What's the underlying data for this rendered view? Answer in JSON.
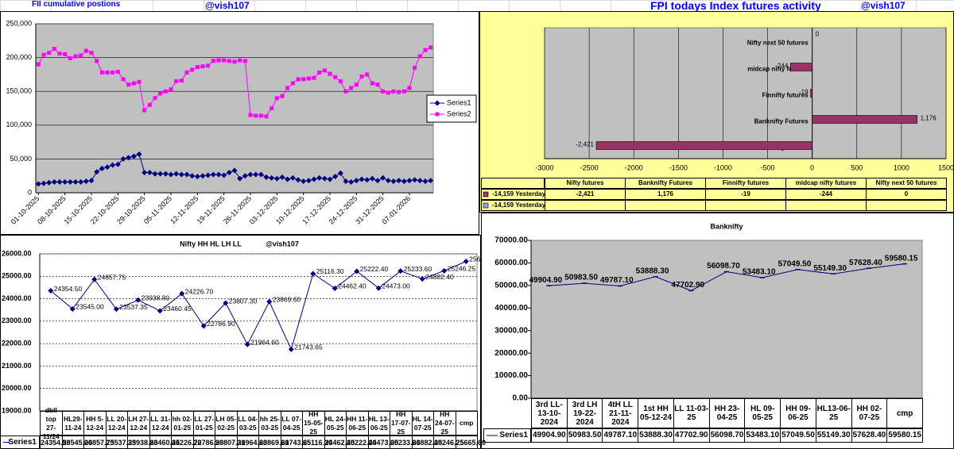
{
  "sheet_labels": {
    "fii_title": "FII cumulative postions",
    "handle_left": "@vish107",
    "fpi_title": "FPI todays Index futures activity",
    "handle_right": "@vish107"
  },
  "chart_data": [
    {
      "type": "line",
      "categories": [
        "01-10-2025",
        null,
        null,
        null,
        null,
        "08-10-2025",
        null,
        null,
        null,
        null,
        "15-10-2025",
        null,
        null,
        null,
        null,
        "22-10-2025",
        null,
        null,
        null,
        null,
        "29-10-2025",
        null,
        null,
        null,
        null,
        "05-11-2025",
        null,
        null,
        null,
        null,
        "12-11-2025",
        null,
        null,
        null,
        null,
        "19-11-2025",
        null,
        null,
        null,
        null,
        "26-11-2025",
        null,
        null,
        null,
        null,
        "03-12-2025",
        null,
        null,
        null,
        null,
        "10-12-2025",
        null,
        null,
        null,
        null,
        "17-12-2025",
        null,
        null,
        null,
        null,
        "24-12-2025",
        null,
        null,
        null,
        null,
        "31-12-2025",
        null,
        null,
        null,
        null,
        "07-01-2026",
        null,
        null,
        null,
        null
      ],
      "series": [
        {
          "name": "Series1",
          "color": "#000080",
          "marker": "diamond",
          "values": [
            13000,
            14000,
            15000,
            16000,
            16000,
            16000,
            16000,
            16000,
            16000,
            17000,
            18000,
            31000,
            36000,
            38000,
            41000,
            42000,
            50000,
            52000,
            54000,
            57000,
            30000,
            30000,
            28000,
            28000,
            28000,
            27000,
            28000,
            27000,
            27000,
            25000,
            24000,
            25000,
            26000,
            27000,
            27000,
            26000,
            30000,
            33000,
            21000,
            25000,
            27000,
            27000,
            27000,
            23000,
            22000,
            21000,
            23000,
            20000,
            22000,
            19000,
            17000,
            18000,
            20000,
            22000,
            21000,
            20000,
            24000,
            29000,
            17000,
            16000,
            18000,
            20000,
            19000,
            21000,
            18000,
            22000,
            18000,
            17000,
            18000,
            17000,
            18000,
            19000,
            18000,
            17000,
            18000
          ]
        },
        {
          "name": "Series2",
          "color": "#ff00ff",
          "marker": "square",
          "values": [
            190000,
            204000,
            207000,
            213000,
            206000,
            205000,
            199000,
            202000,
            203000,
            210000,
            207000,
            195000,
            178000,
            178000,
            178000,
            179000,
            168000,
            160000,
            162000,
            164000,
            122000,
            130000,
            140000,
            147000,
            150000,
            153000,
            165000,
            166000,
            178000,
            182000,
            186000,
            187000,
            188000,
            195000,
            196000,
            196000,
            195000,
            194000,
            196000,
            195000,
            115000,
            114000,
            114000,
            113000,
            125000,
            140000,
            143000,
            155000,
            162000,
            168000,
            168000,
            169000,
            170000,
            178000,
            181000,
            176000,
            171000,
            165000,
            150000,
            155000,
            160000,
            172000,
            175000,
            162000,
            160000,
            150000,
            148000,
            150000,
            149000,
            150000,
            155000,
            185000,
            202000,
            211000,
            215000
          ]
        }
      ],
      "ylim": [
        0,
        250000
      ],
      "yticks": [
        0,
        {
          "value": 50000,
          "label": "50,000"
        },
        {
          "value": 100000,
          "label": "100,000"
        },
        {
          "value": 150000,
          "label": "150,000"
        },
        {
          "value": 200000,
          "label": "200,000"
        },
        {
          "value": 250000,
          "label": "250,000"
        }
      ],
      "grid": true,
      "legend": "right"
    },
    {
      "type": "bar",
      "orientation": "horizontal",
      "categories": [
        "Nifty futures",
        "Banknifty Futures",
        "Finnifty futures",
        "midcap nifty futures",
        "Nifty next 50 futures"
      ],
      "series": [
        {
          "name": "-14,159 Yesterday",
          "color": "#993366",
          "values": [
            -2421,
            1176,
            -19,
            -244,
            0
          ],
          "value_labels": [
            "-2,421",
            "1,176",
            "-19",
            "-244",
            "0"
          ]
        },
        {
          "name": "-14,159 Yesterday",
          "color": "#9999ff",
          "values": [
            null,
            null,
            null,
            null,
            null
          ]
        }
      ],
      "xlim": [
        -3000,
        1500
      ],
      "xticks": [
        -3000,
        -2500,
        -2000,
        -1500,
        -1000,
        -500,
        0,
        500,
        1000,
        1500
      ],
      "grid": true,
      "data_table": true
    },
    {
      "type": "line",
      "title": "Nifty HH HL LH LL",
      "subtitle": "@vish107",
      "categories": [
        "dbll top 27-11/24",
        "HL29-11-24",
        "HH 5-12-24",
        "LL 20-12-24",
        "LH 27-12-24",
        "LL 31-12-24",
        "hh 02-01-25",
        "LL 27-01-25",
        "LH 05-02-25",
        "LL 04-03-25",
        "hh 25-03-25",
        "LL 07-04-25",
        "HH 15-05-25",
        "HL 24-05-25",
        "HH 11-06-25",
        "HL 13-06-25",
        "HH 17-07-25",
        "HL 14-07-25",
        "HH 24-07-25",
        "cmp"
      ],
      "series": [
        {
          "name": "Series1",
          "color": "#000080",
          "marker": "diamond",
          "values": [
            24354.5,
            23545,
            24857.75,
            23537.35,
            23938.8,
            23460.45,
            24226.7,
            22786.9,
            23807.3,
            21964.6,
            23869.6,
            21743.65,
            25116.3,
            24462.4,
            25222.4,
            24473,
            25233.6,
            24882.4,
            25246.25,
            25665.6
          ],
          "value_labels": [
            "24354.50",
            "23545.00",
            "24857.75",
            "23537.35",
            "23938.80",
            "23460.45",
            "24226.70",
            "22786.90",
            "23807.30",
            "21964.60",
            "23869.60",
            "21743.65",
            "25116.30",
            "24462.40",
            "25222.40",
            "24473.00",
            "25233.60",
            "24882.40",
            "25246.25",
            "25665.60"
          ]
        }
      ],
      "ylim": [
        19000,
        26000
      ],
      "yticks": [
        {
          "value": 19000,
          "label": "19000.00"
        },
        {
          "value": 20000,
          "label": "20000.00"
        },
        {
          "value": 21000,
          "label": "21000.00"
        },
        {
          "value": 22000,
          "label": "22000.00"
        },
        {
          "value": 23000,
          "label": "23000.00"
        },
        {
          "value": 24000,
          "label": "24000.00"
        },
        {
          "value": 25000,
          "label": "25000.00"
        },
        {
          "value": 26000,
          "label": "26000.00"
        }
      ],
      "grid": true,
      "data_table": true
    },
    {
      "type": "line",
      "title": "Banknifty",
      "categories": [
        "3rd LL-13-10-2024",
        "3rd LH 19-22-2024",
        "4tH LL 21-11-2024",
        "1st HH 05-12-24",
        "LL 11-03-25",
        "HH 23-04-25",
        "HL 09-05-25",
        "HH 09-06-25",
        "HL13-06-25",
        "HH 02-07-25",
        "cmp"
      ],
      "series": [
        {
          "name": "Series1",
          "color": "#000080",
          "marker": "dash",
          "values": [
            49904.9,
            50983.5,
            49787.1,
            53888.3,
            47702.9,
            56098.7,
            53483.1,
            57049.5,
            55149.3,
            57628.4,
            59580.15
          ],
          "value_labels": [
            "49904.90",
            "50983.50",
            "49787.10",
            "53888.30",
            "47702.90",
            "56098.70",
            "53483.10",
            "57049.50",
            "55149.30",
            "57628.40",
            "59580.15"
          ]
        }
      ],
      "ylim": [
        0,
        70000
      ],
      "yticks": [
        {
          "value": 0,
          "label": "0.00"
        },
        {
          "value": 10000,
          "label": "10000.00"
        },
        {
          "value": 20000,
          "label": "20000.00"
        },
        {
          "value": 30000,
          "label": "30000.00"
        },
        {
          "value": 40000,
          "label": "40000.00"
        },
        {
          "value": 50000,
          "label": "50000.00"
        },
        {
          "value": 60000,
          "label": "60000.00"
        },
        {
          "value": 70000,
          "label": "70000.00"
        }
      ],
      "grid": false,
      "data_table": true
    }
  ]
}
